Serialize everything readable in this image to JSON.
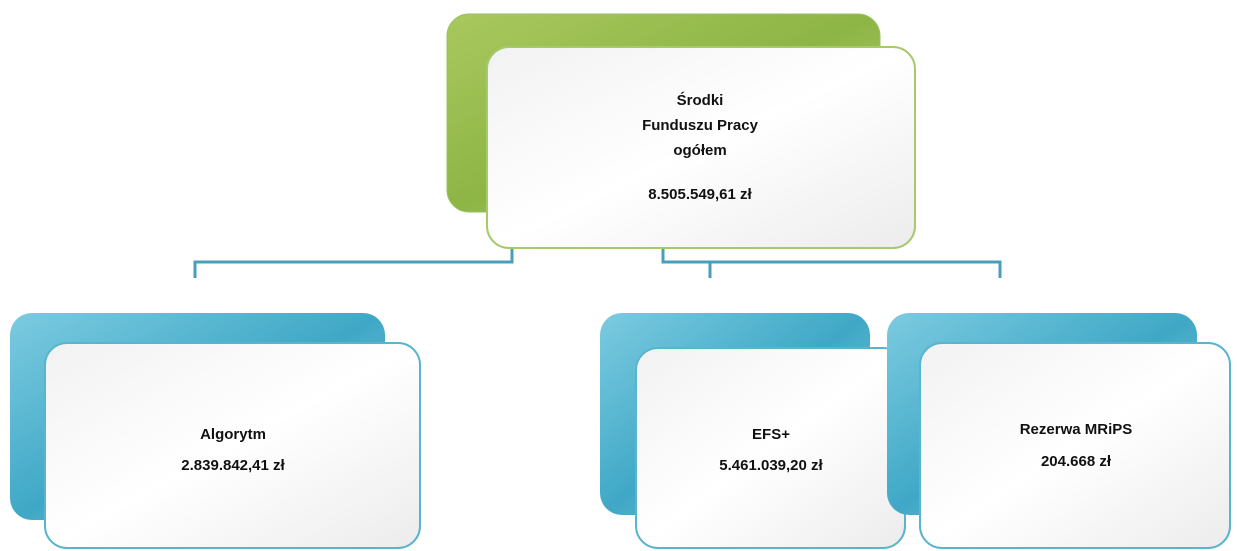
{
  "root": {
    "lines": [
      "Środki",
      "Funduszu Pracy",
      "ogółem",
      "8.505.549,61 zł"
    ]
  },
  "children": [
    {
      "label": "Algorytm",
      "amount": "2.839.842,41 zł"
    },
    {
      "label": "EFS+",
      "amount": "5.461.039,20 zł"
    },
    {
      "label": "Rezerwa MRiPS",
      "amount": "204.668 zł"
    }
  ]
}
